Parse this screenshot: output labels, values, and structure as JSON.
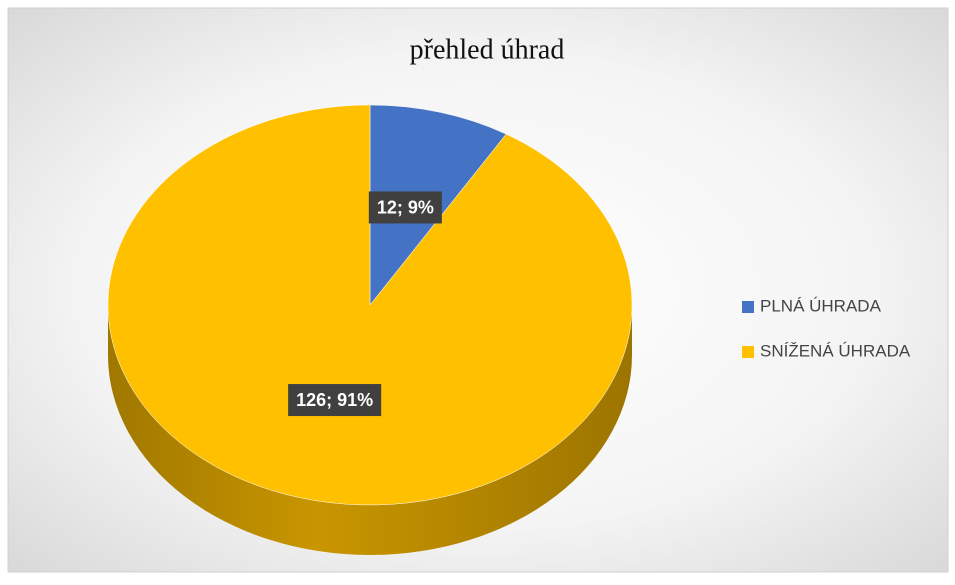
{
  "chart_data": {
    "type": "pie",
    "title": "přehled úhrad",
    "categories": [
      "PLNÁ ÚHRADA",
      "SNÍŽENÁ ÚHRADA"
    ],
    "values": [
      12,
      126
    ],
    "value_labels": [
      "12; 9%",
      "126; 91%"
    ],
    "colors": [
      "#4472c4",
      "#ffc000"
    ],
    "legend": "right"
  }
}
